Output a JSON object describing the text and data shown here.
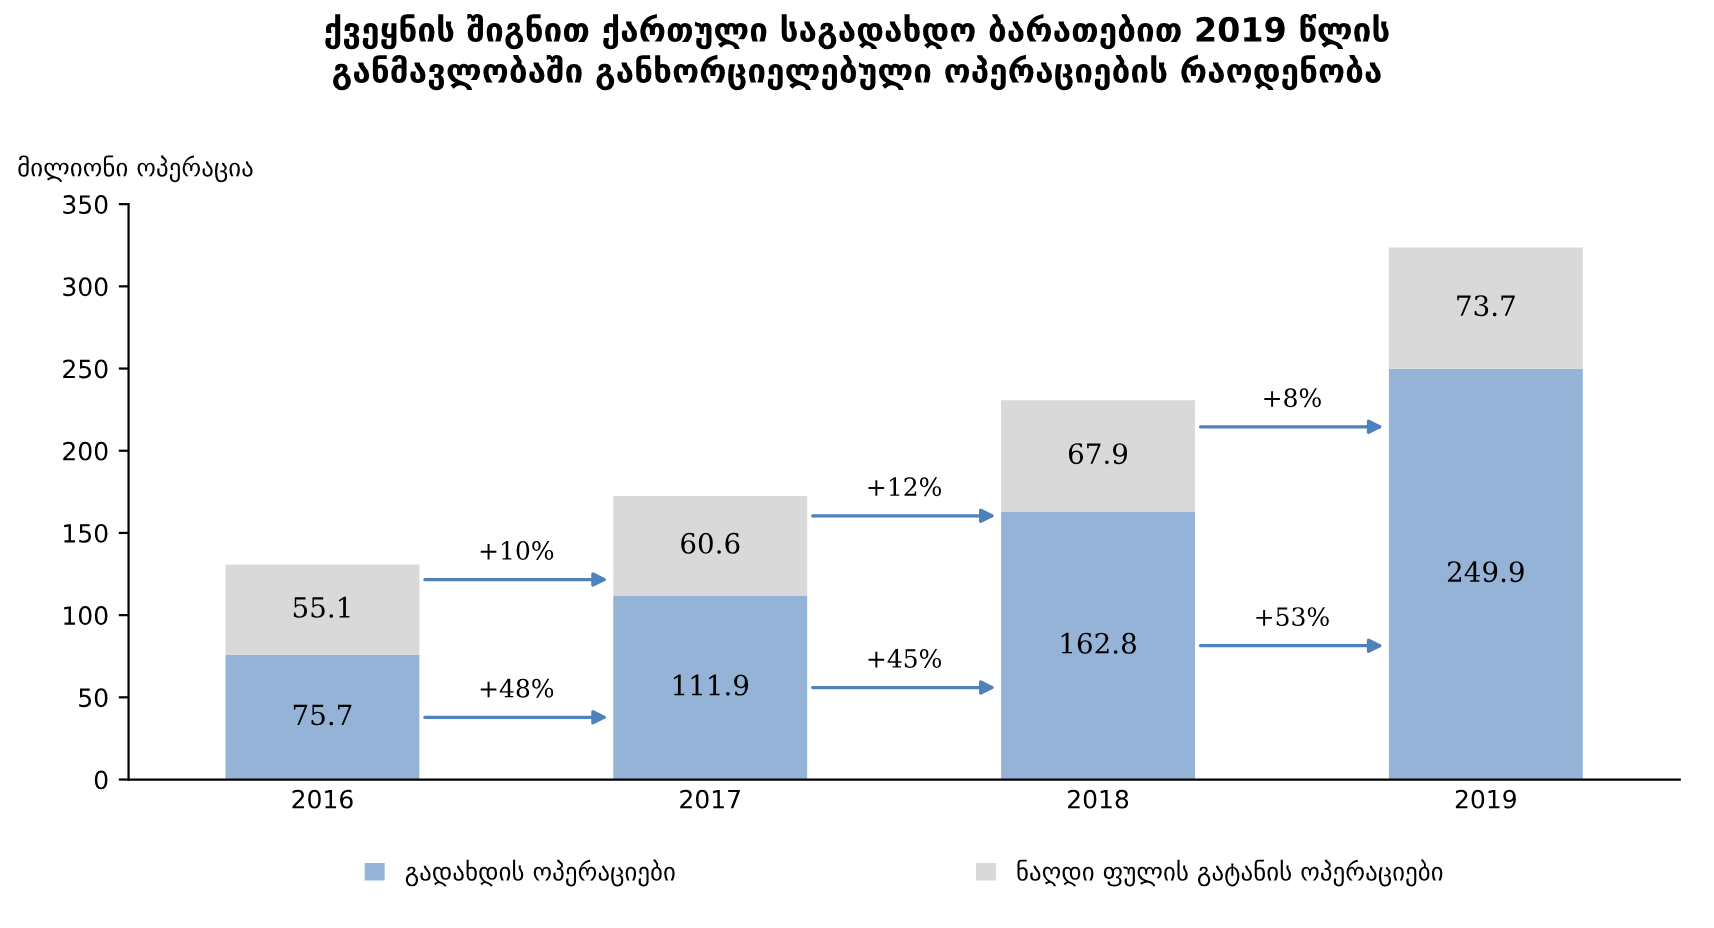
{
  "chart_data": {
    "type": "bar",
    "stacked": true,
    "title": "ქვეყნის შიგნით ქართული საგადახდო ბარათებით 2019 წლის\nგანმავლობაში განხორციელებული ოპერაციების რაოდენობა",
    "ylabel": "მილიონი ოპერაცია",
    "categories": [
      "2016",
      "2017",
      "2018",
      "2019"
    ],
    "series": [
      {
        "name": "გადახდის ოპერაციები",
        "color": "#95b3d7",
        "values": [
          75.7,
          111.9,
          162.8,
          249.9
        ]
      },
      {
        "name": "ნაღდი ფულის გატანის ოპერაციები",
        "color": "#d9d9d9",
        "values": [
          55.1,
          60.6,
          67.9,
          73.7
        ]
      }
    ],
    "ylim": [
      0,
      350
    ],
    "yticks": [
      0,
      50,
      100,
      150,
      200,
      250,
      300,
      350
    ],
    "data_labels": true,
    "grid": false,
    "legend": "bottom",
    "annotations": [
      "+10%",
      "+48%",
      "+12%",
      "+45%",
      "+8%",
      "+53%"
    ]
  }
}
